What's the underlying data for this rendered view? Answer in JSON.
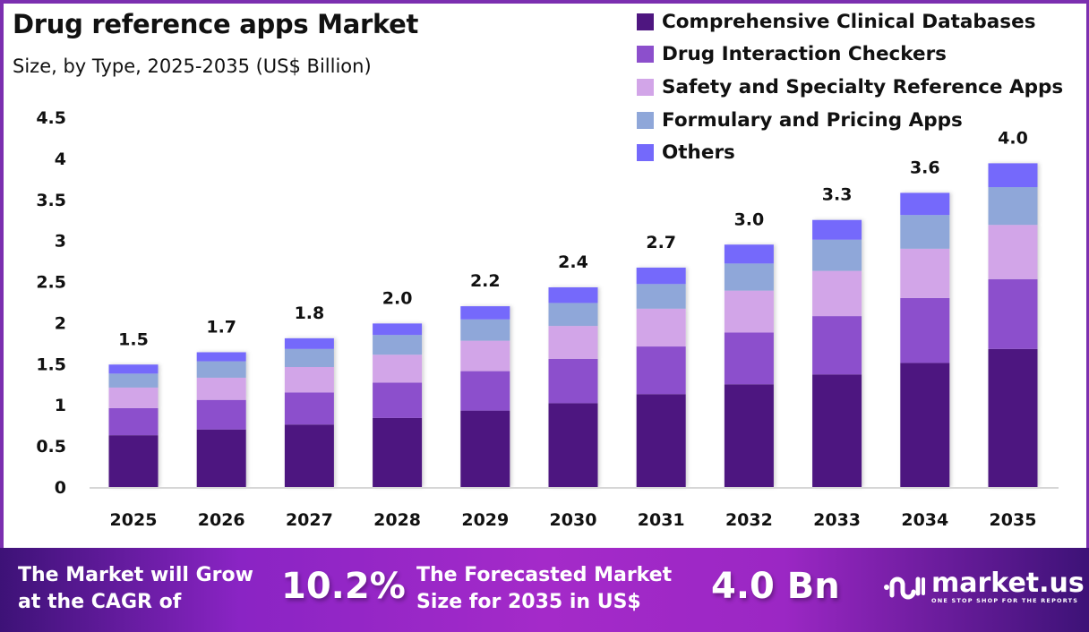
{
  "header": {
    "title": "Drug reference apps Market",
    "subtitle": "Size, by Type, 2025-2035 (US$ Billion)"
  },
  "chart_data": {
    "type": "bar",
    "stacked": true,
    "title": "Drug reference apps Market",
    "subtitle": "Size, by Type, 2025-2035 (US$ Billion)",
    "xlabel": "",
    "ylabel": "",
    "ylim": [
      0,
      4.5
    ],
    "yticks": [
      "0",
      "0.5",
      "1",
      "1.5",
      "2",
      "2.5",
      "3",
      "3.5",
      "4",
      "4.5"
    ],
    "ytick_values": [
      0,
      0.5,
      1,
      1.5,
      2,
      2.5,
      3,
      3.5,
      4,
      4.5
    ],
    "grid": false,
    "legend_position": "top-right",
    "categories": [
      "2025",
      "2026",
      "2027",
      "2028",
      "2029",
      "2030",
      "2031",
      "2032",
      "2033",
      "2034",
      "2035"
    ],
    "totals": [
      "1.5",
      "1.7",
      "1.8",
      "2.0",
      "2.2",
      "2.4",
      "2.7",
      "3.0",
      "3.3",
      "3.6",
      "4.0"
    ],
    "series": [
      {
        "name": "Comprehensive Clinical Databases",
        "color": "#4e1680",
        "values": [
          0.63,
          0.7,
          0.76,
          0.84,
          0.93,
          1.02,
          1.13,
          1.25,
          1.37,
          1.51,
          1.68
        ]
      },
      {
        "name": "Drug Interaction Checkers",
        "color": "#8c4fcc",
        "values": [
          0.33,
          0.36,
          0.39,
          0.43,
          0.48,
          0.54,
          0.58,
          0.63,
          0.71,
          0.79,
          0.85
        ]
      },
      {
        "name": "Safety and Specialty Reference Apps",
        "color": "#d2a5e8",
        "values": [
          0.25,
          0.27,
          0.31,
          0.34,
          0.37,
          0.4,
          0.46,
          0.51,
          0.55,
          0.6,
          0.66
        ]
      },
      {
        "name": "Formulary and Pricing Apps",
        "color": "#8fa7d9",
        "values": [
          0.17,
          0.2,
          0.22,
          0.24,
          0.26,
          0.28,
          0.3,
          0.33,
          0.38,
          0.41,
          0.46
        ]
      },
      {
        "name": "Others",
        "color": "#7469fb",
        "values": [
          0.11,
          0.11,
          0.13,
          0.14,
          0.16,
          0.19,
          0.2,
          0.23,
          0.24,
          0.27,
          0.29
        ]
      }
    ]
  },
  "banner": {
    "cagr_text_line1": "The Market will Grow",
    "cagr_text_line2": "at the CAGR of",
    "cagr_value": "10.2%",
    "forecast_text_line1": "The Forecasted Market",
    "forecast_text_line2": "Size for 2035 in US$",
    "forecast_value": "4.0 Bn",
    "logo_name": "market.us",
    "logo_tagline": "ONE STOP SHOP FOR THE REPORTS"
  }
}
